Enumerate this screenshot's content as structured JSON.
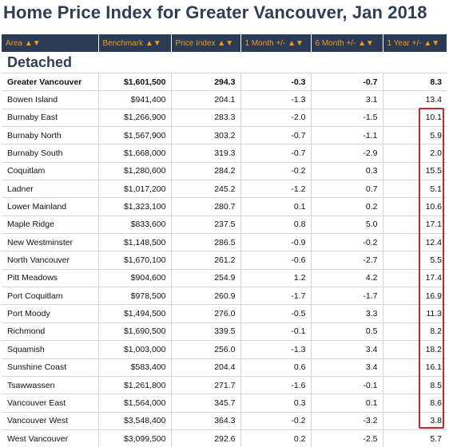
{
  "title": "Home Price Index for Greater Vancouver, Jan 2018",
  "headers": [
    "Area ▲▼",
    "Benchmark ▲▼",
    "Price Index ▲▼",
    "1 Month +/- ▲▼",
    "6 Month +/- ▲▼",
    "1 Year +/- ▲▼"
  ],
  "section": "Detached",
  "rows": [
    [
      "Greater Vancouver",
      "$1,601,500",
      "294.3",
      "-0.3",
      "-0.7",
      "8.3"
    ],
    [
      "Bowen Island",
      "$941,400",
      "204.1",
      "-1.3",
      "3.1",
      "13.4"
    ],
    [
      "Burnaby East",
      "$1,266,900",
      "283.3",
      "-2.0",
      "-1.5",
      "10.1"
    ],
    [
      "Burnaby North",
      "$1,567,900",
      "303.2",
      "-0.7",
      "-1.1",
      "5.9"
    ],
    [
      "Burnaby South",
      "$1,668,000",
      "319.3",
      "-0.7",
      "-2.9",
      "2.0"
    ],
    [
      "Coquitlam",
      "$1,280,600",
      "284.2",
      "-0.2",
      "0.3",
      "15.5"
    ],
    [
      "Ladner",
      "$1,017,200",
      "245.2",
      "-1.2",
      "0.7",
      "5.1"
    ],
    [
      "Lower Mainland",
      "$1,323,100",
      "280.7",
      "0.1",
      "0.2",
      "10.6"
    ],
    [
      "Maple Ridge",
      "$833,600",
      "237.5",
      "0.8",
      "5.0",
      "17.1"
    ],
    [
      "New Westminster",
      "$1,148,500",
      "286.5",
      "-0.9",
      "-0.2",
      "12.4"
    ],
    [
      "North Vancouver",
      "$1,670,100",
      "261.2",
      "-0.6",
      "-2.7",
      "5.5"
    ],
    [
      "Pitt Meadows",
      "$904,600",
      "254.9",
      "1.2",
      "4.2",
      "17.4"
    ],
    [
      "Port Coquitlam",
      "$978,500",
      "260.9",
      "-1.7",
      "-1.7",
      "16.9"
    ],
    [
      "Port Moody",
      "$1,494,500",
      "276.0",
      "-0.5",
      "3.3",
      "11.3"
    ],
    [
      "Richmond",
      "$1,690,500",
      "339.5",
      "-0.1",
      "0.5",
      "8.2"
    ],
    [
      "Squamish",
      "$1,003,000",
      "256.0",
      "-1.3",
      "3.4",
      "18.2"
    ],
    [
      "Sunshine Coast",
      "$583,400",
      "204.4",
      "0.6",
      "3.4",
      "16.1"
    ],
    [
      "Tsawwassen",
      "$1,261,800",
      "271.7",
      "-1.6",
      "-0.1",
      "8.5"
    ],
    [
      "Vancouver East",
      "$1,564,000",
      "345.7",
      "0.3",
      "0.1",
      "8.6"
    ],
    [
      "Vancouver West",
      "$3,548,400",
      "364.3",
      "-0.2",
      "-3.2",
      "3.8"
    ],
    [
      "West Vancouver",
      "$3,099,500",
      "292.6",
      "0.2",
      "-2.5",
      "5.7"
    ]
  ],
  "colors": {
    "header_bg": "#2b3a55",
    "header_text": "#f39c12",
    "title": "#2f3e56",
    "highlight_box": "#c0282d"
  }
}
